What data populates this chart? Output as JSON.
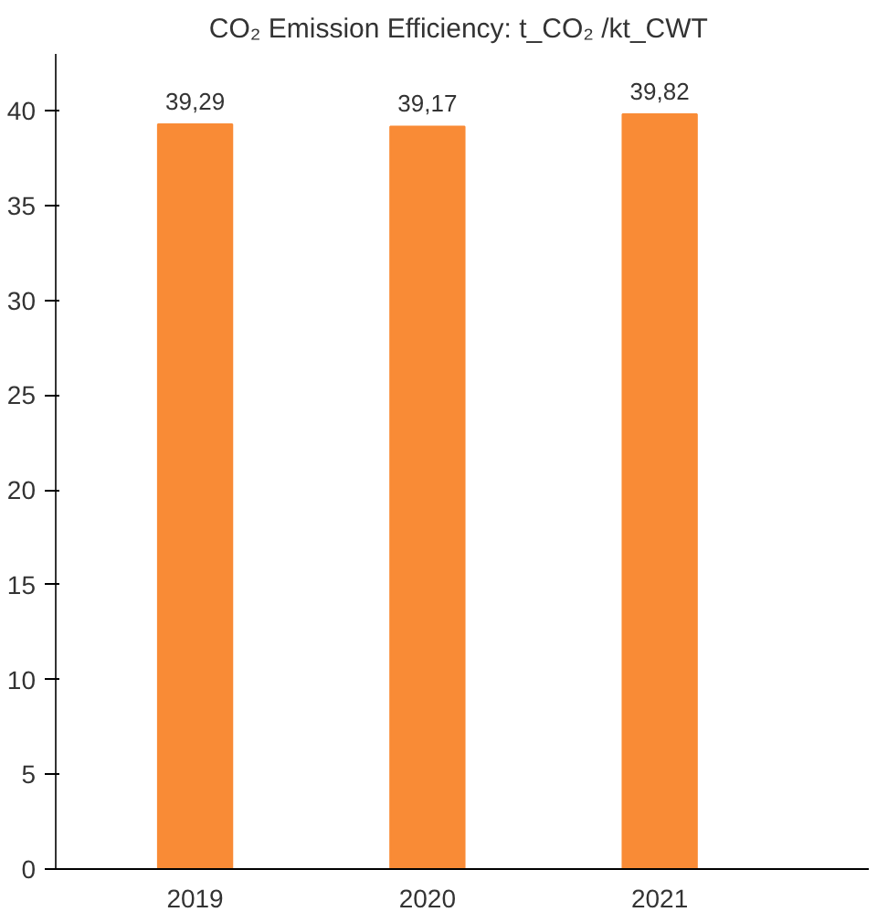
{
  "chart_data": {
    "type": "bar",
    "title": "CO₂  Emission Efficiency: t_CO₂ /kt_CWT",
    "categories": [
      "2019",
      "2020",
      "2021"
    ],
    "values": [
      39.29,
      39.17,
      39.82
    ],
    "value_labels": [
      "39,29",
      "39,17",
      "39,82"
    ],
    "color": "#f98b36",
    "ylim": [
      0,
      43
    ],
    "yticks": [
      0,
      5,
      10,
      15,
      20,
      25,
      30,
      35,
      40
    ],
    "grid": false
  }
}
